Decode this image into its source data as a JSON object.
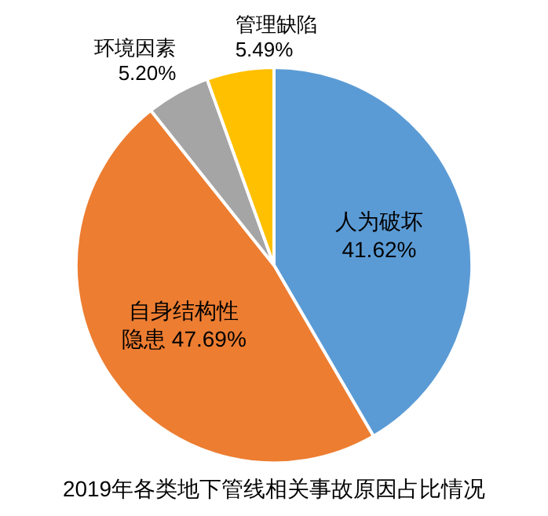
{
  "chart_data": {
    "type": "pie",
    "title": "2019年各类地下管线相关事故原因占比情况",
    "categories": [
      "人为破坏",
      "自身结构性隐患",
      "环境因素",
      "管理缺陷"
    ],
    "values": [
      41.62,
      47.69,
      5.2,
      5.49
    ],
    "value_labels": [
      "41.62%",
      "47.69%",
      "5.20%",
      "5.49%"
    ],
    "colors": [
      "#5b9bd5",
      "#ed7d31",
      "#a5a5a5",
      "#ffc000"
    ]
  }
}
